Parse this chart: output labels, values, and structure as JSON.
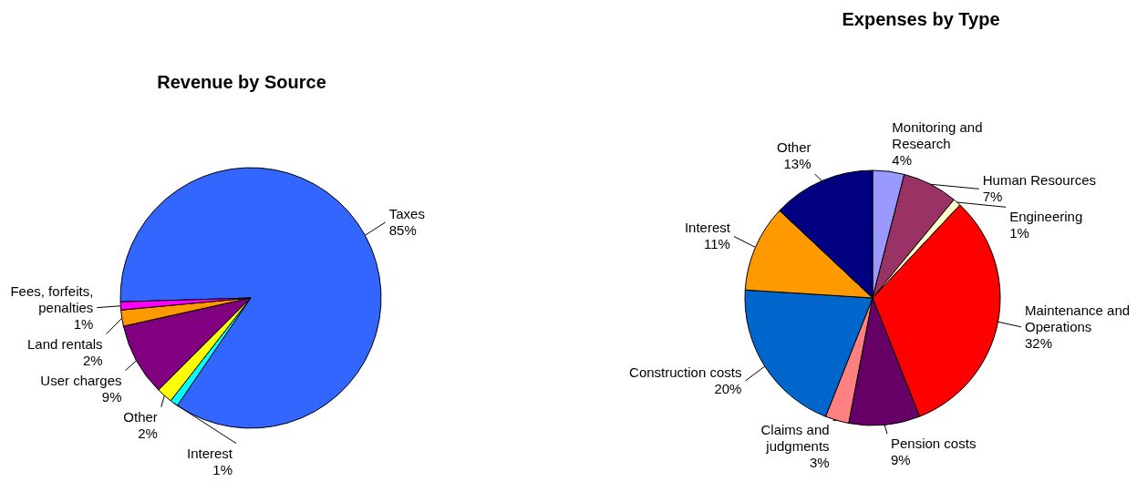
{
  "chart_data": [
    {
      "type": "pie",
      "title": "Revenue by Source",
      "categories": [
        "Taxes",
        "Interest",
        "Other",
        "User charges",
        "Land rentals",
        "Fees, forfeits, penalties"
      ],
      "values": [
        85,
        1,
        2,
        9,
        2,
        1
      ],
      "value_labels": [
        "85%",
        "1%",
        "2%",
        "9%",
        "2%",
        "1%"
      ],
      "colors": [
        "#3366ff",
        "#00ffff",
        "#ffff00",
        "#800080",
        "#ff9900",
        "#ff00ff"
      ]
    },
    {
      "type": "pie",
      "title": "Expenses by Type",
      "categories": [
        "Monitoring and Research",
        "Human Resources",
        "Engineering",
        "Maintenance and Operations",
        "Pension costs",
        "Claims and judgments",
        "Construction costs",
        "Interest",
        "Other"
      ],
      "values": [
        4,
        7,
        1,
        32,
        9,
        3,
        20,
        11,
        13
      ],
      "value_labels": [
        "4%",
        "7%",
        "1%",
        "32%",
        "9%",
        "3%",
        "20%",
        "11%",
        "13%"
      ],
      "colors": [
        "#9999ff",
        "#993366",
        "#ffffcc",
        "#ff0000",
        "#660066",
        "#ff8080",
        "#0066cc",
        "#ff9900",
        "#000080"
      ]
    }
  ]
}
